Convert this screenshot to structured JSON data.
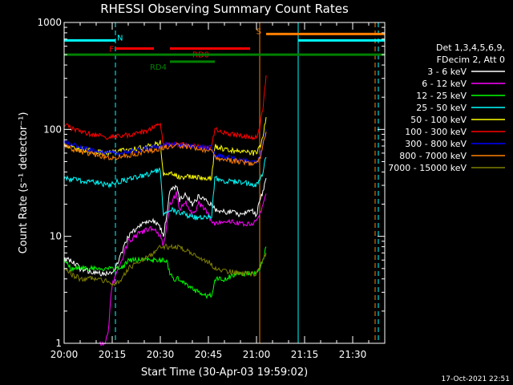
{
  "chart_data": {
    "type": "line",
    "title": "RHESSI Observing Summary Count Rates",
    "xlabel": "Start Time (30-Apr-03 19:59:02)",
    "ylabel": "Count Rate (s⁻¹ detector⁻¹)",
    "x_unit": "minutes after 20:00",
    "xlim": [
      0,
      100
    ],
    "ylim": [
      1,
      1000
    ],
    "y_scale": "log",
    "x_ticks": [
      {
        "value": 0,
        "label": "20:00"
      },
      {
        "value": 15,
        "label": "20:15"
      },
      {
        "value": 30,
        "label": "20:30"
      },
      {
        "value": 45,
        "label": "20:45"
      },
      {
        "value": 60,
        "label": "21:00"
      },
      {
        "value": 75,
        "label": "21:15"
      },
      {
        "value": 90,
        "label": "21:30"
      }
    ],
    "y_ticks": [
      {
        "value": 1,
        "label": "1"
      },
      {
        "value": 10,
        "label": "10"
      },
      {
        "value": 100,
        "label": "100"
      },
      {
        "value": 1000,
        "label": "1000"
      }
    ],
    "legend_header": [
      "Det 1,3,4,5,6,9,",
      "FDecim 2, Att 0"
    ],
    "legend_position": "right",
    "series": [
      {
        "name": "3 - 6 keV",
        "color": "#ffffff",
        "x": [
          0,
          2,
          5,
          10,
          14,
          15,
          18,
          20,
          24,
          28,
          30,
          31,
          33,
          35,
          36,
          38,
          40,
          42,
          44,
          46,
          47,
          49,
          52,
          55,
          58,
          60,
          61,
          62,
          63
        ],
        "y": [
          6,
          6,
          5,
          4.5,
          4.5,
          4.5,
          7,
          10,
          13,
          14,
          12,
          10,
          26,
          30,
          22,
          25,
          20,
          24,
          22,
          20,
          18,
          17,
          17,
          16,
          18,
          16,
          22,
          26,
          35
        ]
      },
      {
        "name": "6 - 12 keV",
        "color": "#ff00ff",
        "x": [
          11,
          13,
          14,
          14.5,
          15,
          18,
          20,
          24,
          28,
          30,
          31,
          33,
          35,
          36,
          38,
          40,
          42,
          44,
          46,
          47,
          49,
          52,
          55,
          58,
          60,
          61,
          62,
          63
        ],
        "y": [
          1,
          1,
          1.5,
          2.5,
          3.5,
          6,
          9,
          11,
          12,
          10,
          8,
          20,
          25,
          18,
          21,
          16,
          20,
          18,
          14,
          13,
          14,
          14,
          13,
          13,
          14,
          16,
          20,
          25
        ]
      },
      {
        "name": "12 - 25 keV",
        "color": "#00ff00",
        "x": [
          0,
          2,
          5,
          10,
          15,
          18,
          20,
          24,
          28,
          30,
          32,
          33,
          34,
          36,
          38,
          40,
          42,
          44,
          46,
          47,
          50,
          55,
          58,
          60,
          61,
          62,
          63
        ],
        "y": [
          6,
          5,
          5,
          5,
          5,
          5,
          6,
          6,
          6,
          6,
          6,
          4.5,
          4,
          4,
          3.5,
          3.2,
          3,
          2.8,
          2.8,
          4,
          4,
          4.5,
          4.5,
          4.5,
          5,
          6,
          8
        ]
      },
      {
        "name": "25 - 50 keV",
        "color": "#00ffff",
        "x": [
          0,
          5,
          10,
          14,
          16,
          20,
          25,
          30,
          31,
          33,
          35,
          38,
          40,
          43,
          46,
          47,
          50,
          55,
          58,
          60,
          61,
          62,
          63
        ],
        "y": [
          35,
          33,
          32,
          30,
          32,
          34,
          37,
          42,
          16,
          18,
          17,
          16,
          15,
          15,
          15,
          35,
          33,
          32,
          31,
          30,
          34,
          40,
          55
        ]
      },
      {
        "name": "50 - 100 keV",
        "color": "#ffff00",
        "x": [
          0,
          5,
          10,
          14,
          16,
          20,
          25,
          30,
          31,
          33,
          36,
          40,
          43,
          46,
          47,
          50,
          55,
          58,
          60,
          61,
          62,
          63
        ],
        "y": [
          72,
          65,
          62,
          60,
          62,
          64,
          68,
          75,
          38,
          40,
          36,
          36,
          35,
          35,
          70,
          65,
          62,
          60,
          60,
          68,
          85,
          130
        ]
      },
      {
        "name": "100 - 300 keV",
        "color": "#ff0000",
        "x": [
          0,
          5,
          10,
          14,
          16,
          20,
          25,
          30,
          31,
          36,
          40,
          43,
          46,
          47,
          50,
          55,
          58,
          60,
          61,
          62,
          63
        ],
        "y": [
          110,
          95,
          88,
          85,
          86,
          88,
          95,
          115,
          70,
          72,
          70,
          68,
          68,
          100,
          92,
          88,
          85,
          85,
          100,
          160,
          320
        ]
      },
      {
        "name": "300 - 800 keV",
        "color": "#0000ff",
        "x": [
          0,
          5,
          10,
          14,
          16,
          20,
          25,
          30,
          31,
          36,
          40,
          43,
          46,
          47,
          50,
          55,
          58,
          60,
          61,
          62,
          63
        ],
        "y": [
          75,
          68,
          62,
          60,
          60,
          62,
          66,
          70,
          72,
          72,
          70,
          68,
          67,
          58,
          55,
          52,
          50,
          50,
          55,
          75,
          100
        ]
      },
      {
        "name": "800 - 7000 keV",
        "color": "#ff8000",
        "x": [
          0,
          5,
          10,
          14,
          16,
          20,
          25,
          30,
          31,
          36,
          40,
          43,
          46,
          47,
          50,
          55,
          58,
          60,
          61,
          62,
          63
        ],
        "y": [
          70,
          62,
          58,
          55,
          55,
          57,
          62,
          66,
          68,
          70,
          68,
          65,
          64,
          55,
          52,
          50,
          48,
          48,
          52,
          70,
          95
        ]
      },
      {
        "name": "7000 - 15000 keV",
        "color": "#808000",
        "x": [
          0,
          2,
          5,
          10,
          14,
          15,
          18,
          20,
          24,
          28,
          30,
          32,
          35,
          38,
          40,
          42,
          44,
          46,
          47,
          50,
          55,
          58,
          60,
          61,
          62,
          63
        ],
        "y": [
          5,
          4.5,
          4,
          4,
          3.8,
          3.5,
          4,
          5,
          6,
          7,
          8,
          8,
          8,
          7.5,
          7,
          6.5,
          6,
          5.5,
          5,
          4.8,
          4.5,
          4.5,
          4.5,
          5,
          6,
          7
        ]
      }
    ],
    "annotations": {
      "flags": [
        {
          "label": "N",
          "color": "#00ffff",
          "ranges": [
            [
              0,
              16
            ],
            [
              73,
              100
            ]
          ],
          "y": 680
        },
        {
          "label": "F",
          "color": "#ff0000",
          "ranges": [
            [
              16,
              28
            ],
            [
              33,
              58
            ]
          ],
          "y": 570
        },
        {
          "label": "RD0",
          "color": "#ff0000",
          "ranges": [],
          "label_at": 40,
          "y": 570
        },
        {
          "label": "S",
          "color": "#ff8000",
          "ranges": [
            [
              63,
              100
            ]
          ],
          "y": 780
        },
        {
          "label": "",
          "color": "#008000",
          "ranges": [
            [
              0,
              100
            ]
          ],
          "y": 500
        },
        {
          "label": "RD4",
          "color": "#008000",
          "ranges": [
            [
              33,
              47
            ]
          ],
          "y": 430
        }
      ],
      "vlines": [
        {
          "x": 0,
          "color": "#00ffff",
          "style": "solid"
        },
        {
          "x": 16,
          "color": "#00ffff",
          "style": "dashed"
        },
        {
          "x": 61,
          "color": "#ff8000",
          "style": "solid"
        },
        {
          "x": 73,
          "color": "#00ffff",
          "style": "solid"
        },
        {
          "x": 97,
          "color": "#ff8000",
          "style": "dashed"
        },
        {
          "x": 98,
          "color": "#00ffff",
          "style": "dashed"
        }
      ]
    }
  },
  "footer": {
    "timestamp": "17-Oct-2021 22:51"
  }
}
